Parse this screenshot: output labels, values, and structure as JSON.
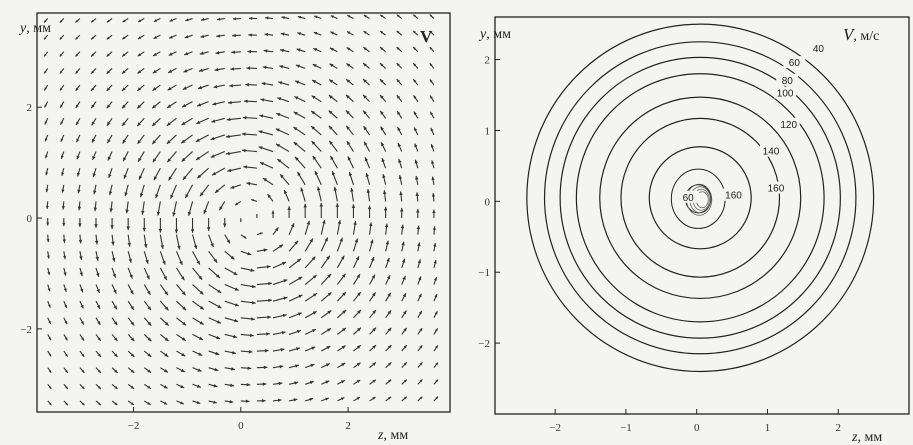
{
  "chart_data": [
    {
      "type": "vector_field",
      "panel": "left",
      "ylabel": {
        "var": "y",
        "unit": ", мм"
      },
      "xlabel": {
        "var": "z",
        "unit": ", мм"
      },
      "tag": "V",
      "xlim": [
        -3.8,
        3.9
      ],
      "ylim": [
        -3.5,
        3.7
      ],
      "xticks": [
        -2,
        0,
        2
      ],
      "yticks": [
        -2,
        0,
        2
      ],
      "vortex": {
        "center": [
          0.2,
          0.0
        ],
        "core_radius": 1.2,
        "peak_speed": 160
      },
      "grid_step": 0.3,
      "grid_x_range": [
        -3.6,
        3.6
      ],
      "grid_y_range": [
        -3.45,
        3.6
      ],
      "arrow_color": "#333333"
    },
    {
      "type": "contour",
      "panel": "right",
      "ylabel": {
        "var": "y",
        "unit": ", мм"
      },
      "xlabel": {
        "var": "z",
        "unit": ", мм"
      },
      "tag": {
        "var": "V",
        "unit": ", м/с"
      },
      "xlim": [
        -2.85,
        3.0
      ],
      "ylim": [
        -3.0,
        2.6
      ],
      "xticks": [
        -2,
        -1,
        0,
        1,
        2
      ],
      "yticks": [
        -2,
        -1,
        0,
        1,
        2
      ],
      "center": [
        0.05,
        0.05
      ],
      "levels": [
        {
          "value": 40,
          "radius": 2.45
        },
        {
          "value": 60,
          "radius": 2.2
        },
        {
          "value": 80,
          "radius": 1.98
        },
        {
          "value": 100,
          "radius": 1.75
        },
        {
          "value": 120,
          "radius": 1.42
        },
        {
          "value": 140,
          "radius": 1.12
        },
        {
          "value": 160,
          "radius": 0.72
        }
      ],
      "inner_levels": [
        {
          "value": 160,
          "radius": 0.38
        },
        {
          "value": 60,
          "radius": 0.18
        }
      ],
      "labels": [
        {
          "text": "40",
          "at": [
            1.72,
            2.15
          ]
        },
        {
          "text": "60",
          "at": [
            1.38,
            1.95
          ]
        },
        {
          "text": "80",
          "at": [
            1.28,
            1.7
          ]
        },
        {
          "text": "100",
          "at": [
            1.25,
            1.52
          ]
        },
        {
          "text": "120",
          "at": [
            1.3,
            1.08
          ]
        },
        {
          "text": "140",
          "at": [
            1.05,
            0.7
          ]
        },
        {
          "text": "160",
          "at": [
            0.52,
            0.08
          ]
        },
        {
          "text": "160",
          "at": [
            1.12,
            0.18
          ]
        },
        {
          "text": "60",
          "at": [
            -0.12,
            0.05
          ]
        }
      ],
      "line_color": "#222222"
    }
  ]
}
